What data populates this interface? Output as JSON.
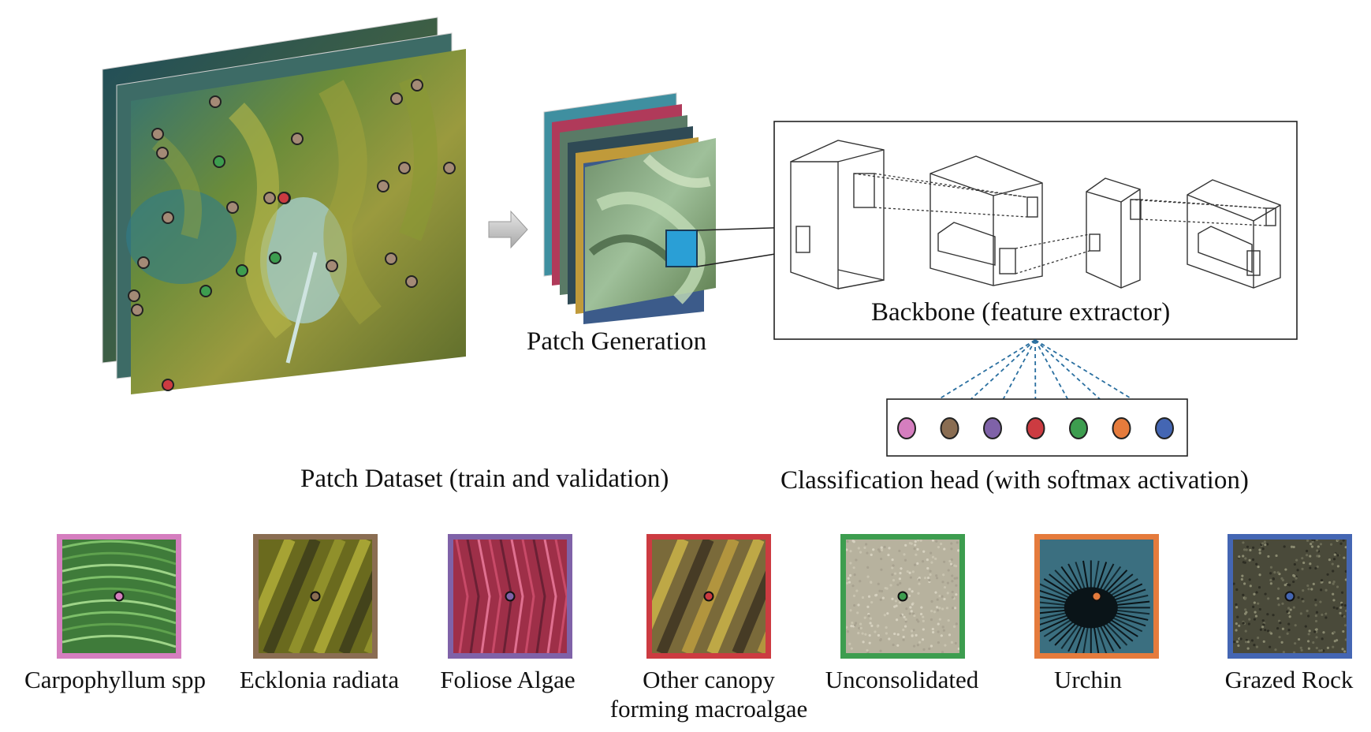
{
  "labels": {
    "patch_generation": "Patch Generation",
    "backbone": "Backbone (feature extractor)",
    "patch_dataset": "Patch Dataset (train and validation)",
    "classification_head": "Classification head (with softmax activation)"
  },
  "classes": [
    {
      "name": "Carpophyllum spp",
      "name_line2": "",
      "color": "#d57ebf"
    },
    {
      "name": "Ecklonia radiata",
      "name_line2": "",
      "color": "#8a6d52"
    },
    {
      "name": "Foliose Algae",
      "name_line2": "",
      "color": "#7f62a8"
    },
    {
      "name": "Other canopy",
      "name_line2": "forming macroalgae",
      "color": "#cc3b41"
    },
    {
      "name": "Unconsolidated",
      "name_line2": "",
      "color": "#3d9d4f"
    },
    {
      "name": "Urchin",
      "name_line2": "",
      "color": "#e57b3c"
    },
    {
      "name": "Grazed Rock",
      "name_line2": "",
      "color": "#4466b3"
    }
  ],
  "head_node_colors": [
    "#d57ebf",
    "#8a6d52",
    "#7f62a8",
    "#cc3b41",
    "#3d9d4f",
    "#e57b3c",
    "#4466b3"
  ],
  "annotation_point_color": "#a48a76",
  "highlight_point_colors": {
    "green": "#3d9d4f",
    "red": "#cc3b41"
  }
}
